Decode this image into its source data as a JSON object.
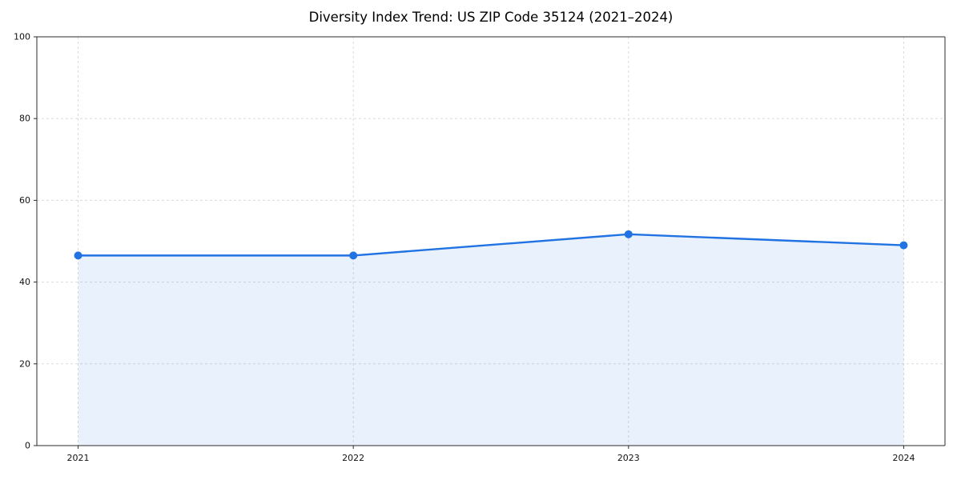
{
  "chart_data": {
    "type": "area",
    "title": "Diversity Index Trend: US ZIP Code 35124 (2021–2024)",
    "x": [
      2021,
      2022,
      2023,
      2024
    ],
    "categories": [
      "2021",
      "2022",
      "2023",
      "2024"
    ],
    "series": [
      {
        "name": "Diversity Index",
        "values": [
          46.5,
          46.5,
          51.7,
          49.0
        ]
      }
    ],
    "xlabel": "",
    "ylabel": "",
    "ylim": [
      0,
      100
    ],
    "yticks": [
      0,
      20,
      40,
      60,
      80,
      100
    ],
    "grid": true,
    "legend": false,
    "line_color": "#2172e2",
    "fill_color": "#e8f1fc",
    "marker": "circle",
    "marker_radius": 5,
    "line_width": 2.4
  }
}
